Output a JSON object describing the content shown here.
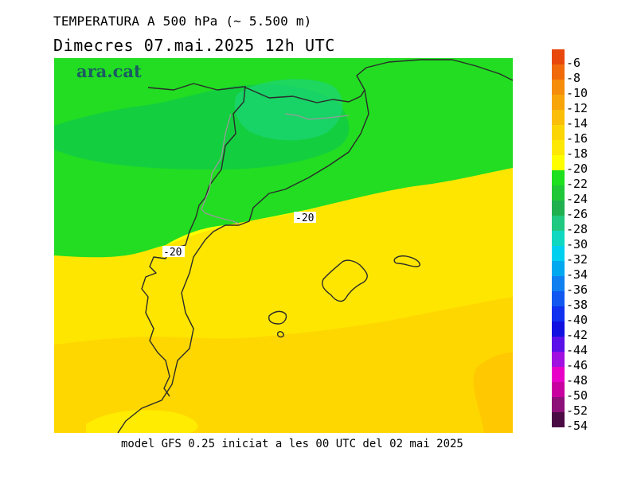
{
  "header": {
    "title": "TEMPERATURA A 500 hPa (~ 5.500 m)",
    "subtitle": "Dimecres  07.mai.2025 12h UTC"
  },
  "brand": {
    "text": "ara.cat"
  },
  "map": {
    "contour_labels": [
      "-20",
      "-20"
    ]
  },
  "legend": {
    "levels": [
      "-6",
      "-8",
      "-10",
      "-12",
      "-14",
      "-16",
      "-18",
      "-20",
      "-22",
      "-24",
      "-26",
      "-28",
      "-30",
      "-32",
      "-34",
      "-36",
      "-38",
      "-40",
      "-42",
      "-44",
      "-46",
      "-48",
      "-50",
      "-52",
      "-54"
    ],
    "colors": [
      "#e8480c",
      "#f06a0c",
      "#f58c0a",
      "#f8a50a",
      "#fabe08",
      "#fcd604",
      "#fde805",
      "#fefe00",
      "#1ee01e",
      "#20c838",
      "#20b050",
      "#20c880",
      "#10d8c0",
      "#00d0f0",
      "#00a8f0",
      "#1080f0",
      "#1058f0",
      "#1030f0",
      "#1010e0",
      "#5a10e8",
      "#a010e0",
      "#e800c8",
      "#c800a0",
      "#8c1078",
      "#4a0a44"
    ],
    "bounds_label_top": "-6"
  },
  "footer": {
    "text": "model GFS 0.25 iniciat a les 00 UTC del 02 mai 2025"
  }
}
